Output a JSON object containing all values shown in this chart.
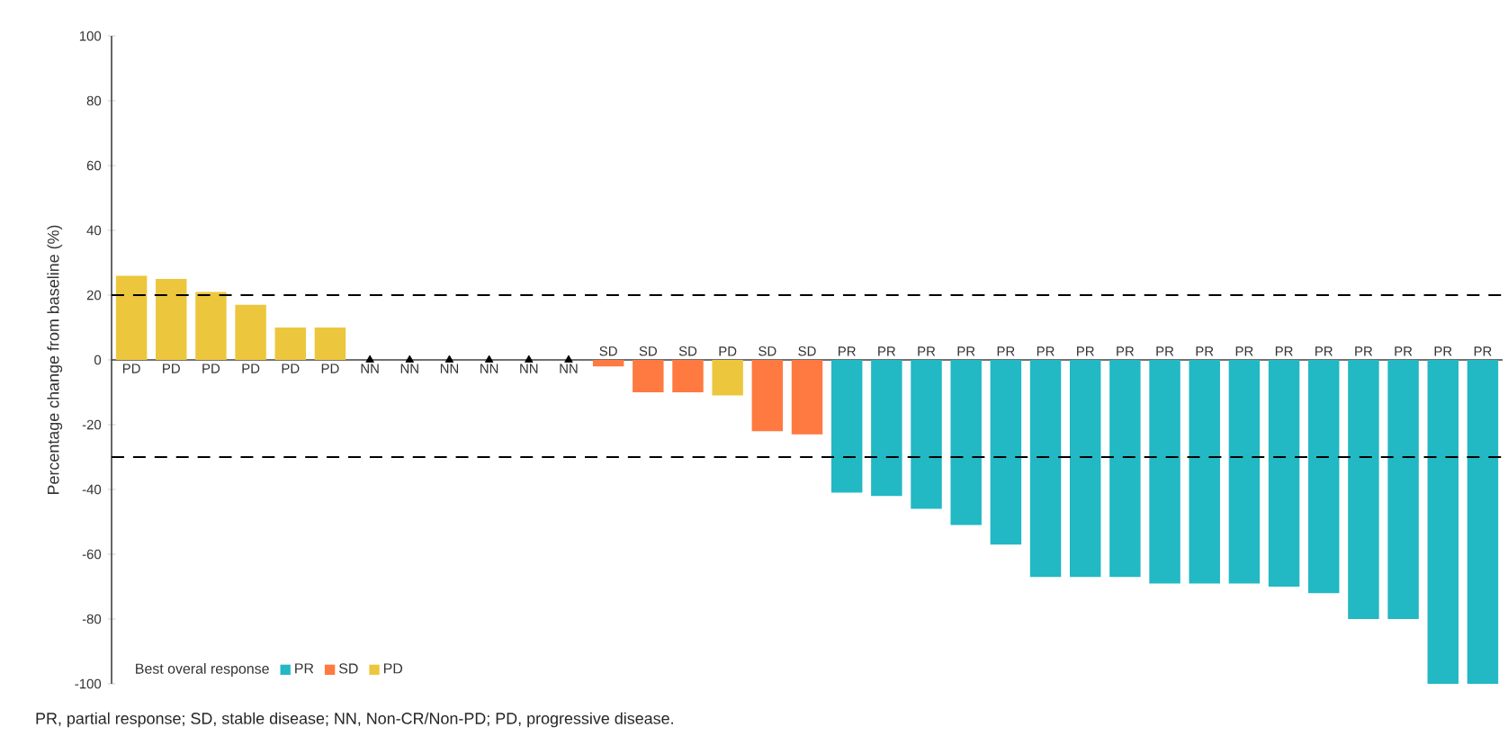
{
  "chart_data": {
    "type": "bar",
    "ylabel": "Percentage change from baseline (%)",
    "categories": [
      "PD",
      "PD",
      "PD",
      "PD",
      "PD",
      "PD",
      "NN",
      "NN",
      "NN",
      "NN",
      "NN",
      "NN",
      "SD",
      "SD",
      "SD",
      "PD",
      "SD",
      "SD",
      "PR",
      "PR",
      "PR",
      "PR",
      "PR",
      "PR",
      "PR",
      "PR",
      "PR",
      "PR",
      "PR",
      "PR",
      "PR",
      "PR",
      "PR",
      "PR",
      "PR"
    ],
    "series": [
      {
        "name": "PR",
        "color": "#22b8c4",
        "values": [
          null,
          null,
          null,
          null,
          null,
          null,
          null,
          null,
          null,
          null,
          null,
          null,
          null,
          null,
          null,
          null,
          null,
          null,
          -41,
          -42,
          -46,
          -51,
          -57,
          -67,
          -67,
          -67,
          -69,
          -69,
          -69,
          -70,
          -72,
          -80,
          -80,
          -100,
          -100
        ]
      },
      {
        "name": "SD",
        "color": "#ff7a40",
        "values": [
          null,
          null,
          null,
          null,
          null,
          null,
          null,
          null,
          null,
          null,
          null,
          null,
          -2,
          -10,
          -10,
          null,
          -22,
          -23,
          null,
          null,
          null,
          null,
          null,
          null,
          null,
          null,
          null,
          null,
          null,
          null,
          null,
          null,
          null,
          null,
          null
        ]
      },
      {
        "name": "PD",
        "color": "#ecc73d",
        "values": [
          26,
          25,
          21,
          17,
          10,
          10,
          null,
          null,
          null,
          null,
          null,
          null,
          null,
          null,
          null,
          -11,
          null,
          null,
          null,
          null,
          null,
          null,
          null,
          null,
          null,
          null,
          null,
          null,
          null,
          null,
          null,
          null,
          null,
          null,
          null
        ]
      },
      {
        "type": "scatter",
        "color": "#000000",
        "marker": "triangle",
        "values": [
          null,
          null,
          null,
          null,
          null,
          null,
          0,
          0,
          0,
          0,
          0,
          0,
          null,
          null,
          null,
          null,
          null,
          null,
          null,
          null,
          null,
          null,
          null,
          null,
          null,
          null,
          null,
          null,
          null,
          null,
          null,
          null,
          null,
          null,
          null
        ]
      }
    ],
    "ylim": [
      -100,
      100
    ],
    "yticks": [
      -100,
      -80,
      -60,
      -40,
      -20,
      0,
      20,
      40,
      60,
      80,
      100
    ],
    "ref_lines": [
      {
        "axis": "y",
        "value": 20,
        "color": "#000000",
        "line_style": "dashed"
      },
      {
        "axis": "y",
        "value": -30,
        "color": "#000000",
        "line_style": "dashed"
      }
    ],
    "legend": "bottom left",
    "legend_title": "Best overal response",
    "annotations": [
      "PR, partial response; SD, stable disease; NN, Non-CR/Non-PD; PD, progressive disease."
    ]
  }
}
